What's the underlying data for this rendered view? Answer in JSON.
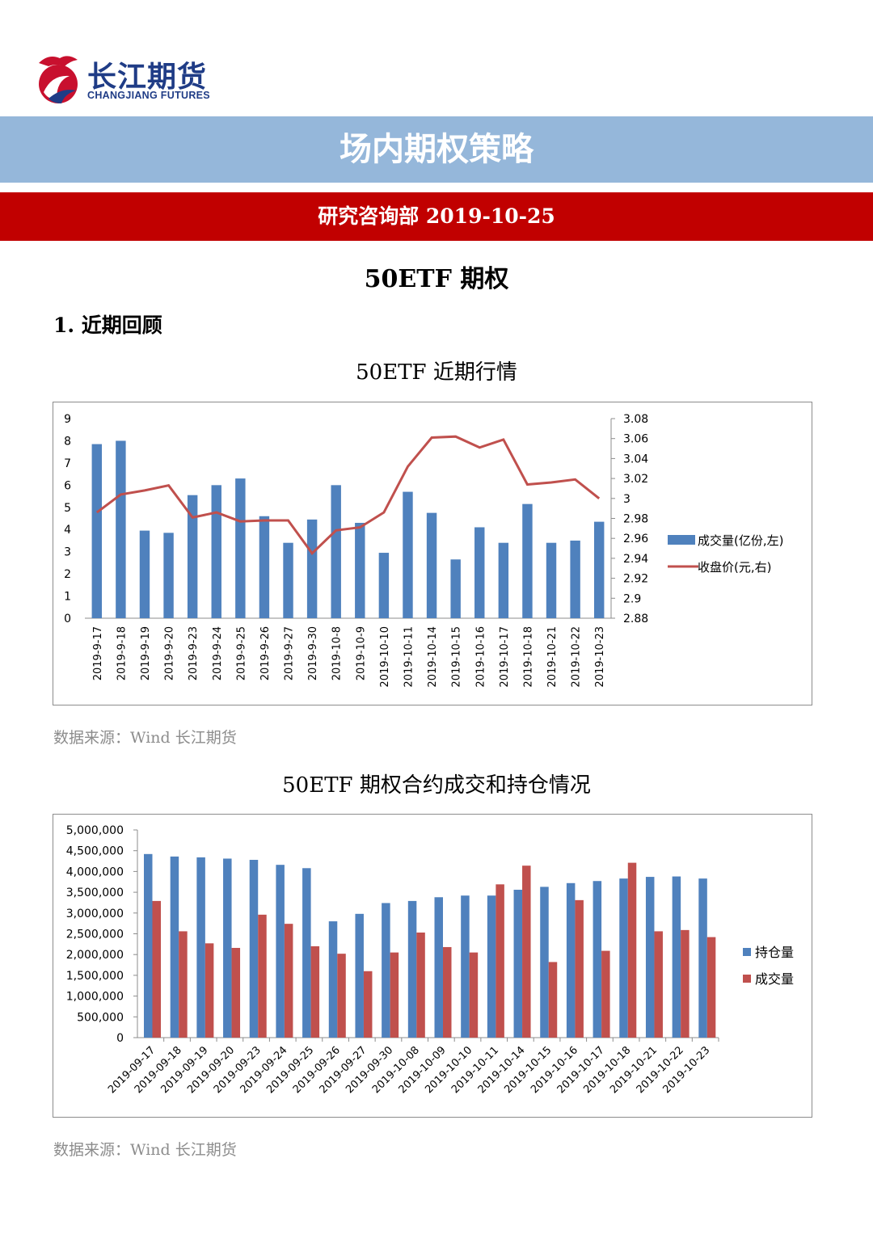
{
  "header": {
    "logo_cn": "长江期货",
    "logo_en": "CHANGJIANG FUTURES",
    "title": "场内期权策略",
    "subtitle": "研究咨询部  2019-10-25"
  },
  "section": {
    "title": "50ETF 期权",
    "heading": "1. 近期回顾"
  },
  "chart1": {
    "caption": "50ETF 近期行情",
    "source": "数据来源：Wind  长江期货"
  },
  "chart2": {
    "caption": "50ETF 期权合约成交和持仓情况",
    "source": "数据来源：Wind  长江期货"
  },
  "colors": {
    "blue": "#4f81bd",
    "red": "#c0504d",
    "band_blue": "#95b7da",
    "band_red": "#c10000",
    "logo": "#1f3c86"
  },
  "chart_data": [
    {
      "type": "bar+line",
      "title": "50ETF 近期行情",
      "categories": [
        "2019-9-17",
        "2019-9-18",
        "2019-9-19",
        "2019-9-20",
        "2019-9-23",
        "2019-9-24",
        "2019-9-25",
        "2019-9-26",
        "2019-9-27",
        "2019-9-30",
        "2019-10-8",
        "2019-10-9",
        "2019-10-10",
        "2019-10-11",
        "2019-10-14",
        "2019-10-15",
        "2019-10-16",
        "2019-10-17",
        "2019-10-18",
        "2019-10-21",
        "2019-10-22",
        "2019-10-23"
      ],
      "series": [
        {
          "name": "成交量(亿份,左)",
          "type": "bar",
          "axis": "left",
          "values": [
            7.85,
            8.0,
            3.95,
            3.85,
            5.55,
            6.0,
            6.3,
            4.6,
            3.4,
            4.45,
            6.0,
            4.3,
            2.95,
            5.7,
            4.75,
            2.65,
            4.1,
            3.4,
            5.15,
            3.4,
            3.5,
            4.35
          ]
        },
        {
          "name": "收盘价(元,右)",
          "type": "line",
          "axis": "right",
          "values": [
            2.986,
            3.004,
            3.008,
            3.013,
            2.981,
            2.986,
            2.977,
            2.978,
            2.978,
            2.945,
            2.968,
            2.971,
            2.986,
            3.032,
            3.061,
            3.062,
            3.051,
            3.059,
            3.014,
            3.016,
            3.019,
            3.0
          ]
        }
      ],
      "y_left": {
        "min": 0,
        "max": 9,
        "ticks": [
          "0",
          "1",
          "2",
          "3",
          "4",
          "5",
          "6",
          "7",
          "8",
          "9"
        ]
      },
      "y_right": {
        "min": 2.88,
        "max": 3.08,
        "ticks": [
          "2.88",
          "2.9",
          "2.92",
          "2.94",
          "2.96",
          "2.98",
          "3",
          "3.02",
          "3.04",
          "3.06",
          "3.08"
        ]
      },
      "legend": "right"
    },
    {
      "type": "bar",
      "title": "50ETF 期权合约成交和持仓情况",
      "categories": [
        "2019-09-17",
        "2019-09-18",
        "2019-09-19",
        "2019-09-20",
        "2019-09-23",
        "2019-09-24",
        "2019-09-25",
        "2019-09-26",
        "2019-09-27",
        "2019-09-30",
        "2019-10-08",
        "2019-10-09",
        "2019-10-10",
        "2019-10-11",
        "2019-10-14",
        "2019-10-15",
        "2019-10-16",
        "2019-10-17",
        "2019-10-18",
        "2019-10-21",
        "2019-10-22",
        "2019-10-23"
      ],
      "series": [
        {
          "name": "持仓量",
          "values": [
            4420000,
            4360000,
            4340000,
            4310000,
            4280000,
            4160000,
            4080000,
            2800000,
            2980000,
            3240000,
            3290000,
            3380000,
            3420000,
            3420000,
            3560000,
            3630000,
            3720000,
            3770000,
            3830000,
            3870000,
            3880000,
            3830000
          ]
        },
        {
          "name": "成交量",
          "values": [
            3290000,
            2560000,
            2270000,
            2160000,
            2960000,
            2740000,
            2200000,
            2020000,
            1600000,
            2050000,
            2530000,
            2180000,
            2050000,
            3690000,
            4140000,
            1820000,
            3310000,
            2090000,
            4210000,
            2560000,
            2590000,
            2420000
          ]
        }
      ],
      "ylim": [
        0,
        5000000
      ],
      "y_ticks": [
        "0",
        "500,000",
        "1,000,000",
        "1,500,000",
        "2,000,000",
        "2,500,000",
        "3,000,000",
        "3,500,000",
        "4,000,000",
        "4,500,000",
        "5,000,000"
      ],
      "legend": "right"
    }
  ]
}
